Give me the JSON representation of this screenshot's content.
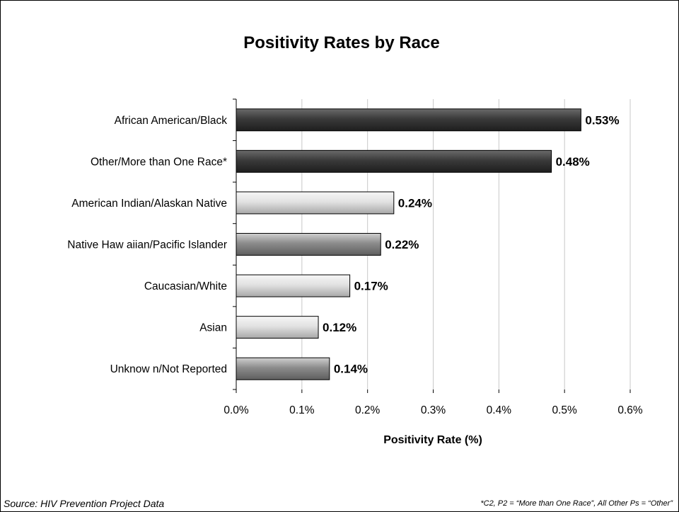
{
  "chart_data": {
    "type": "bar",
    "orientation": "horizontal",
    "title": "Positivity Rates by Race",
    "xlabel": "Positivity Rate (%)",
    "ylabel": "",
    "xlim": [
      0,
      0.6
    ],
    "x_ticks": [
      "0.0%",
      "0.1%",
      "0.2%",
      "0.3%",
      "0.4%",
      "0.5%",
      "0.6%"
    ],
    "grid": "vertical gridlines",
    "legend": "none",
    "categories": [
      "African American/Black",
      "Other/More than One Race*",
      "American Indian/Alaskan Native",
      "Native Haw aiian/Pacific Islander",
      "Caucasian/White",
      "Asian",
      "Unknow n/Not Reported"
    ],
    "values": [
      0.525,
      0.48,
      0.24,
      0.22,
      0.173,
      0.125,
      0.142
    ],
    "value_labels": [
      "0.53%",
      "0.48%",
      "0.24%",
      "0.22%",
      "0.17%",
      "0.12%",
      "0.14%"
    ],
    "bar_styles": [
      "dark",
      "dark",
      "light",
      "medium",
      "light",
      "light",
      "medium"
    ]
  },
  "colors": {
    "dark": "#3a3a3a",
    "medium": "#8c8c8c",
    "light": "#d6d6d6",
    "grid": "#c8c8c8"
  },
  "footer": {
    "source": "Source: HIV Prevention Project Data",
    "note": "*C2, P2 = “More than One Race”, All Other Ps = “Other”"
  }
}
